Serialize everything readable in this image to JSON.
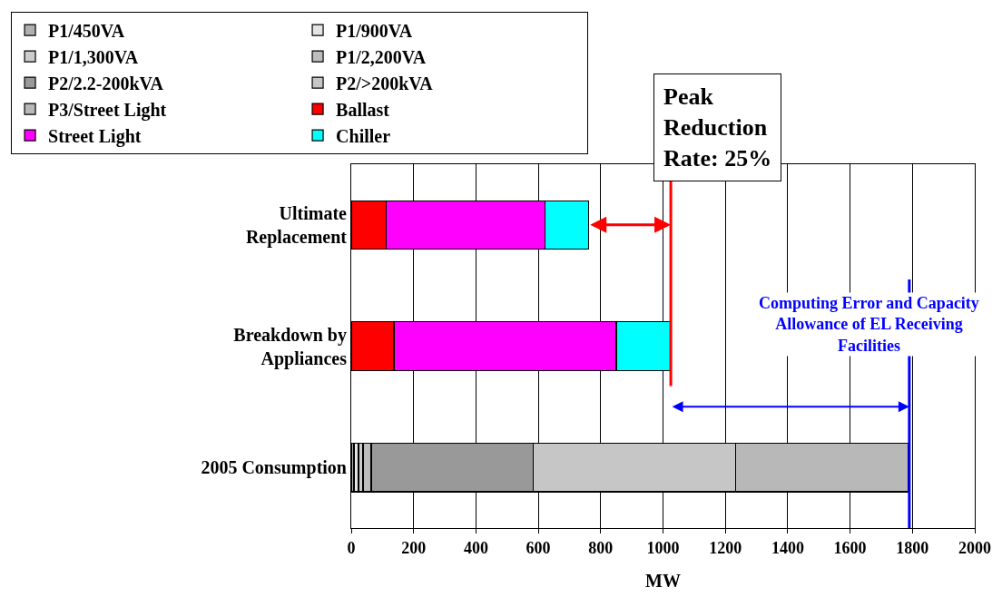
{
  "chart_data": {
    "type": "bar",
    "orientation": "horizontal",
    "stacked": true,
    "xlabel": "MW",
    "categories": [
      "Ultimate Replacement",
      "Breakdown by Appliances",
      "2005 Consumption"
    ],
    "series": [
      {
        "name": "P1/450VA",
        "color": "#b0b0b0",
        "values": [
          null,
          null,
          9
        ]
      },
      {
        "name": "P1/900VA",
        "color": "#e4e4e4",
        "values": [
          null,
          null,
          14
        ]
      },
      {
        "name": "P1/1,300VA",
        "color": "#cccccc",
        "values": [
          null,
          null,
          15
        ]
      },
      {
        "name": "P1/2,200VA",
        "color": "#bdbdbd",
        "values": [
          null,
          null,
          26
        ]
      },
      {
        "name": "P2/2.2-200kVA",
        "color": "#999999",
        "values": [
          null,
          null,
          520
        ]
      },
      {
        "name": "P2/>200kVA",
        "color": "#c6c6c6",
        "values": [
          null,
          null,
          650
        ]
      },
      {
        "name": "P3/Street Light",
        "color": "#b8b8b8",
        "values": [
          null,
          null,
          553
        ]
      },
      {
        "name": "Ballast",
        "color": "#ff0000",
        "values": [
          112,
          137,
          null
        ]
      },
      {
        "name": "Street Light",
        "color": "#ff00ff",
        "values": [
          509,
          713,
          null
        ]
      },
      {
        "name": "Chiller",
        "color": "#00ffff",
        "values": [
          141,
          174,
          null
        ]
      }
    ],
    "xlim": [
      0,
      2000
    ],
    "xticks": [
      0,
      200,
      400,
      600,
      800,
      1000,
      1200,
      1400,
      1600,
      1800,
      2000
    ],
    "grid": "x",
    "legend": "top left",
    "ref_lines": [
      {
        "axis": "x",
        "value": 1025,
        "color": "#ff0000"
      },
      {
        "axis": "x",
        "value": 1790,
        "color": "#0000ff"
      }
    ],
    "annotations": [
      "Peak\nReduction\nRate: 25%",
      "Computing Error and Capacity\nAllowance of EL Receiving\nFacilities"
    ]
  }
}
